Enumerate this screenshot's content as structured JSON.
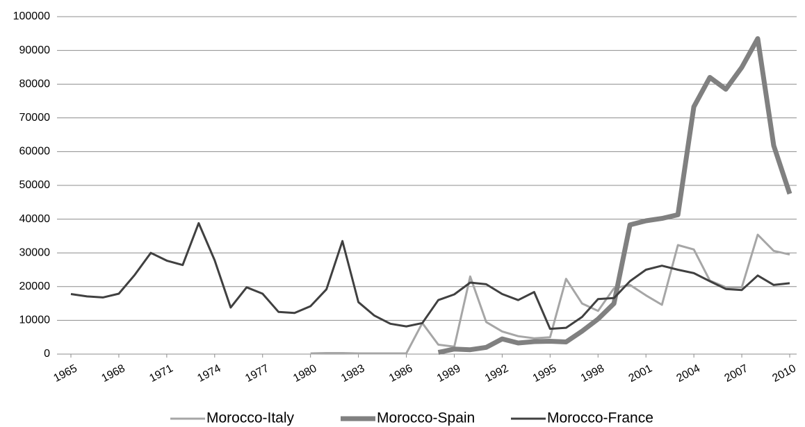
{
  "chart_data": {
    "type": "line",
    "x": [
      1965,
      1966,
      1967,
      1968,
      1969,
      1970,
      1971,
      1972,
      1973,
      1974,
      1975,
      1976,
      1977,
      1978,
      1979,
      1980,
      1981,
      1982,
      1983,
      1984,
      1985,
      1986,
      1987,
      1988,
      1989,
      1990,
      1991,
      1992,
      1993,
      1994,
      1995,
      1996,
      1997,
      1998,
      1999,
      2000,
      2001,
      2002,
      2003,
      2004,
      2005,
      2006,
      2007,
      2008,
      2009,
      2010
    ],
    "xlim": [
      1965,
      2010
    ],
    "xticks": [
      1965,
      1968,
      1971,
      1974,
      1977,
      1980,
      1983,
      1986,
      1989,
      1992,
      1995,
      1998,
      2001,
      2004,
      2007,
      2010
    ],
    "ylim": [
      0,
      100000
    ],
    "yticks": [
      0,
      10000,
      20000,
      30000,
      40000,
      50000,
      60000,
      70000,
      80000,
      90000,
      100000
    ],
    "grid": true,
    "legend": "bottom",
    "series": [
      {
        "name": "Morocco-Italy",
        "color": "#a6a6a6",
        "width": 3,
        "values": [
          null,
          null,
          null,
          null,
          null,
          null,
          null,
          null,
          null,
          null,
          null,
          null,
          null,
          null,
          null,
          200,
          300,
          300,
          200,
          200,
          200,
          200,
          9200,
          2800,
          2200,
          23000,
          9500,
          6700,
          5300,
          4700,
          5000,
          22300,
          15000,
          12800,
          19500,
          20500,
          17400,
          14600,
          32300,
          31000,
          21800,
          19800,
          19800,
          35400,
          30600,
          29500
        ]
      },
      {
        "name": "Morocco-Spain",
        "color": "#808080",
        "width": 7,
        "values": [
          null,
          null,
          null,
          null,
          null,
          null,
          null,
          null,
          null,
          null,
          null,
          null,
          null,
          null,
          null,
          null,
          null,
          null,
          null,
          null,
          null,
          null,
          null,
          500,
          1500,
          1300,
          2000,
          4500,
          3300,
          3700,
          3800,
          3600,
          6800,
          10400,
          15000,
          38300,
          39500,
          40200,
          41300,
          73300,
          82000,
          78500,
          85000,
          93500,
          61800,
          47500
        ]
      },
      {
        "name": "Morocco-France",
        "color": "#404040",
        "width": 3,
        "values": [
          17800,
          17100,
          16800,
          17900,
          23500,
          30000,
          27700,
          26400,
          38800,
          27800,
          13800,
          19800,
          17900,
          12500,
          12200,
          14200,
          19200,
          33500,
          15400,
          11400,
          9000,
          8200,
          9200,
          16000,
          17700,
          21200,
          20700,
          17800,
          16000,
          18400,
          7500,
          7800,
          11000,
          16300,
          16600,
          21600,
          25000,
          26200,
          25000,
          24000,
          21600,
          19300,
          19000,
          23300,
          20500,
          21000
        ]
      }
    ]
  }
}
